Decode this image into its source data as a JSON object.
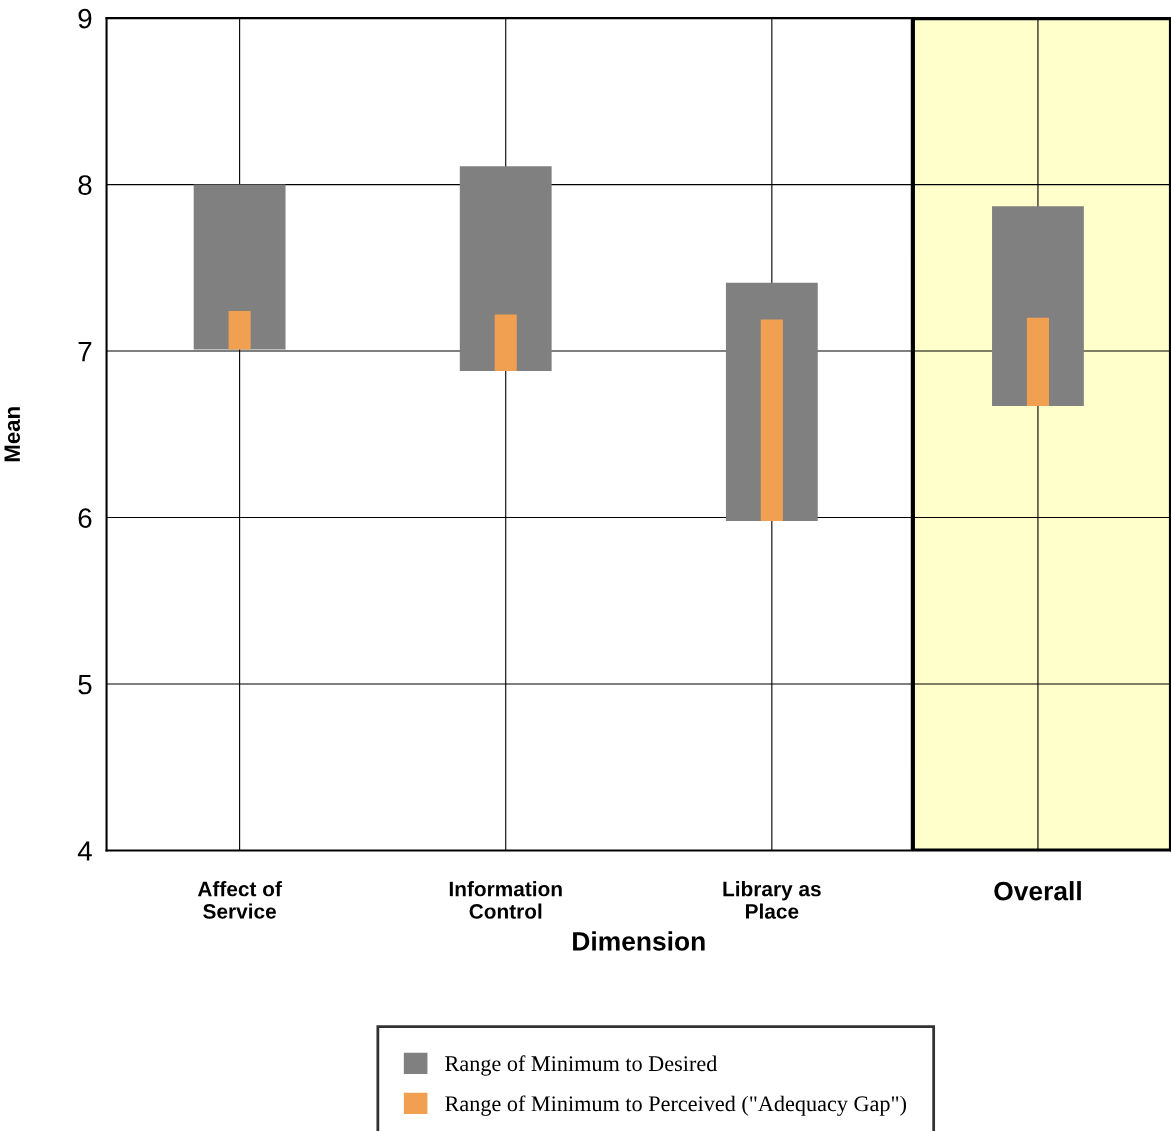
{
  "chart_data": {
    "type": "bar",
    "xlabel": "Dimension",
    "ylabel": "Mean",
    "categories": [
      "Affect of\nService",
      "Information\nControl",
      "Library as\nPlace",
      "Overall"
    ],
    "series": [
      {
        "name": "Range of Minimum to Desired",
        "color": "#808080",
        "base": [
          7.01,
          6.88,
          5.98,
          6.67
        ],
        "values": [
          0.99,
          1.23,
          1.43,
          1.2
        ]
      },
      {
        "name": "Range of Minimum to Perceived (\"Adequacy Gap\")",
        "color": "#f0a050",
        "base": [
          7.01,
          6.88,
          5.98,
          6.67
        ],
        "values": [
          0.23,
          0.34,
          1.21,
          0.53
        ]
      }
    ],
    "ylim": [
      4,
      9
    ],
    "yticks": [
      4,
      5,
      6,
      7,
      8,
      9
    ],
    "grid": true,
    "legend": "bottom",
    "bands": [
      {
        "axis": "x",
        "from": "Overall",
        "to": "Overall",
        "color": "#ffffcc"
      }
    ]
  }
}
